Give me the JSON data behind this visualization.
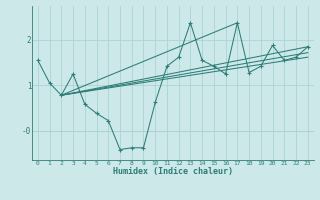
{
  "xlabel": "Humidex (Indice chaleur)",
  "bg_color": "#cce8e8",
  "line_color": "#2d7d78",
  "grid_color": "#aad4d4",
  "xlim": [
    -0.5,
    23.5
  ],
  "ylim": [
    -0.65,
    2.75
  ],
  "xticks": [
    0,
    1,
    2,
    3,
    4,
    5,
    6,
    7,
    8,
    9,
    10,
    11,
    12,
    13,
    14,
    15,
    16,
    17,
    18,
    19,
    20,
    21,
    22,
    23
  ],
  "yticks": [
    0,
    1,
    2
  ],
  "ytick_labels": [
    "-0",
    "1",
    "2"
  ],
  "x_data": [
    0,
    1,
    2,
    3,
    4,
    5,
    6,
    7,
    8,
    9,
    10,
    11,
    12,
    13,
    14,
    15,
    16,
    17,
    18,
    19,
    20,
    21,
    22,
    23
  ],
  "y_main": [
    1.55,
    1.05,
    0.78,
    1.25,
    0.58,
    0.38,
    0.22,
    -0.42,
    -0.38,
    -0.38,
    0.62,
    1.42,
    1.62,
    2.38,
    1.55,
    1.42,
    1.25,
    2.38,
    1.28,
    1.42,
    1.88,
    1.55,
    1.62,
    1.85
  ],
  "straight_lines": [
    {
      "x": [
        2,
        23
      ],
      "y": [
        0.78,
        1.85
      ]
    },
    {
      "x": [
        2,
        23
      ],
      "y": [
        0.78,
        1.72
      ]
    },
    {
      "x": [
        2,
        17
      ],
      "y": [
        0.78,
        2.38
      ]
    },
    {
      "x": [
        2,
        23
      ],
      "y": [
        0.78,
        1.62
      ]
    }
  ]
}
